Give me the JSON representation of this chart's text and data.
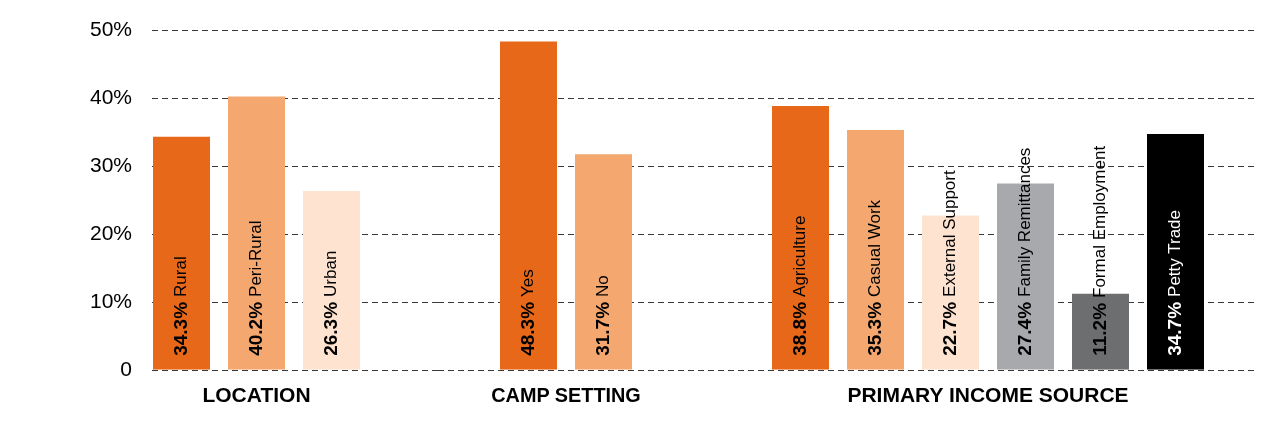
{
  "chart_data": [
    {
      "type": "bar",
      "xlabel": "LOCATION",
      "categories": [
        "Rural",
        "Peri-Rural",
        "Urban"
      ],
      "values": [
        34.3,
        40.2,
        26.3
      ],
      "colors": [
        "#e8681a",
        "#f4a870",
        "#fde3d0"
      ],
      "value_labels": [
        "34.3%",
        "40.2%",
        "26.3%"
      ],
      "ylim": [
        0,
        50
      ],
      "yticks": [
        0,
        {
          "value": 10,
          "label": "10%"
        },
        {
          "value": 20,
          "label": "20%"
        },
        {
          "value": 30,
          "label": "30%"
        },
        {
          "value": 40,
          "label": "40%"
        },
        {
          "value": 50,
          "label": "50%"
        }
      ],
      "grid": "y",
      "tick_labels": "y"
    },
    {
      "type": "bar",
      "xlabel": "CAMP SETTING",
      "categories": [
        "Yes",
        "No"
      ],
      "values": [
        48.3,
        31.7
      ],
      "colors": [
        "#e8681a",
        "#f4a870"
      ],
      "value_labels": [
        "48.3%",
        "31.7%"
      ],
      "ylim": [
        0,
        50
      ],
      "yticks": [
        0,
        10,
        20,
        30,
        40,
        50
      ],
      "grid": "y",
      "tick_labels": false
    },
    {
      "type": "bar",
      "xlabel": "PRIMARY INCOME SOURCE",
      "categories": [
        "Agriculture",
        "Casual Work",
        "External Support",
        "Family Remittances",
        "Formal Employment",
        "Petty Trade"
      ],
      "values": [
        38.8,
        35.3,
        22.7,
        27.4,
        11.2,
        34.7
      ],
      "colors": [
        "#e8681a",
        "#f4a870",
        "#fde3d0",
        "#a7a9ac",
        "#6d6e70",
        "#000000"
      ],
      "value_labels": [
        "38.8%",
        "35.3%",
        "22.7%",
        "27.4%",
        "11.2%",
        "34.7%"
      ],
      "ylim": [
        0,
        50
      ],
      "yticks": [
        0,
        10,
        20,
        30,
        40,
        50
      ],
      "grid": "y",
      "tick_labels": false
    }
  ]
}
